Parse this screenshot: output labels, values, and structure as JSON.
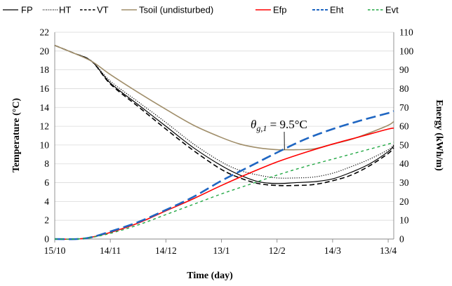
{
  "chart_data": {
    "type": "line",
    "xlabel": "Time (day)",
    "ylabel_left": "Temperature (°C)",
    "ylabel_right": "Energy (kWh/m)",
    "x_ticks": [
      {
        "label": "15/10",
        "day": 0
      },
      {
        "label": "14/11",
        "day": 30
      },
      {
        "label": "14/12",
        "day": 60
      },
      {
        "label": "13/1",
        "day": 90
      },
      {
        "label": "12/2",
        "day": 120
      },
      {
        "label": "14/3",
        "day": 150
      },
      {
        "label": "13/4",
        "day": 180
      }
    ],
    "xlim": [
      0,
      183
    ],
    "ylim_left": [
      0,
      22
    ],
    "ylim_right": [
      0,
      110
    ],
    "y_ticks_left": [
      "0",
      "2",
      "4",
      "6",
      "8",
      "10",
      "12",
      "14",
      "16",
      "18",
      "20",
      "22"
    ],
    "y_ticks_right": [
      "0",
      "10",
      "20",
      "30",
      "40",
      "50",
      "60",
      "70",
      "80",
      "90",
      "100",
      "110"
    ],
    "grid": "horizontal",
    "legend_position": "top",
    "annotation": {
      "text_parts": [
        "θ",
        "g,1",
        " = 9.5°C"
      ],
      "x": 124,
      "y": 9.5
    },
    "series": [
      {
        "name": "FP",
        "axis": "left",
        "color": "#000000",
        "dash": "solid",
        "width": 1.2,
        "x": [
          0,
          10,
          20,
          30,
          45,
          60,
          75,
          90,
          100,
          110,
          120,
          130,
          140,
          150,
          160,
          170,
          180,
          183
        ],
        "y": [
          20.6,
          19.8,
          18.9,
          16.6,
          14.3,
          12.0,
          9.7,
          7.8,
          6.8,
          6.1,
          5.9,
          6.0,
          6.1,
          6.4,
          7.1,
          8.0,
          9.3,
          9.9
        ]
      },
      {
        "name": "HT",
        "axis": "left",
        "color": "#000000",
        "dash": "dotted",
        "width": 1.2,
        "x": [
          0,
          10,
          20,
          30,
          45,
          60,
          75,
          90,
          100,
          110,
          120,
          130,
          140,
          150,
          160,
          170,
          180,
          183
        ],
        "y": [
          20.6,
          19.8,
          18.9,
          16.8,
          14.6,
          12.4,
          10.1,
          8.2,
          7.3,
          6.8,
          6.5,
          6.5,
          6.6,
          7.0,
          7.7,
          8.5,
          9.5,
          10.0
        ]
      },
      {
        "name": "VT",
        "axis": "left",
        "color": "#000000",
        "dash": "dashed",
        "width": 1.6,
        "x": [
          0,
          10,
          20,
          30,
          45,
          60,
          75,
          90,
          100,
          110,
          120,
          130,
          140,
          150,
          160,
          170,
          180,
          183
        ],
        "y": [
          20.6,
          19.8,
          18.9,
          16.5,
          14.1,
          11.7,
          9.4,
          7.4,
          6.5,
          5.9,
          5.7,
          5.7,
          5.8,
          6.2,
          6.8,
          7.8,
          9.1,
          9.7
        ]
      },
      {
        "name": "Tsoil (undisturbed)",
        "axis": "left",
        "color": "#a08e6a",
        "dash": "solid",
        "width": 1.6,
        "x": [
          0,
          10,
          20,
          30,
          45,
          60,
          75,
          90,
          100,
          110,
          120,
          125,
          130,
          140,
          150,
          160,
          170,
          180,
          183
        ],
        "y": [
          20.6,
          19.8,
          18.9,
          17.5,
          15.6,
          13.8,
          12.1,
          10.8,
          10.1,
          9.7,
          9.5,
          9.5,
          9.5,
          9.6,
          10.1,
          10.6,
          11.3,
          12.1,
          12.5
        ]
      },
      {
        "name": "Efp",
        "axis": "right",
        "color": "#ff0000",
        "dash": "solid",
        "width": 1.6,
        "x": [
          0,
          12,
          20,
          30,
          45,
          60,
          75,
          90,
          105,
          120,
          135,
          150,
          165,
          180,
          183
        ],
        "y": [
          0,
          0,
          1.0,
          3.5,
          8.5,
          15,
          21.5,
          28.5,
          35,
          41,
          46,
          50.5,
          54.5,
          58.5,
          59
        ]
      },
      {
        "name": "Eht",
        "axis": "right",
        "color": "#1f66c2",
        "dash": "longdash",
        "width": 2.6,
        "x": [
          0,
          12,
          20,
          30,
          45,
          60,
          75,
          90,
          105,
          120,
          135,
          150,
          165,
          180,
          183
        ],
        "y": [
          0,
          0,
          1.0,
          4.0,
          9.0,
          15.5,
          22.5,
          31,
          38.5,
          46,
          53,
          58.5,
          63,
          67,
          68
        ]
      },
      {
        "name": "Evt",
        "axis": "right",
        "color": "#22a844",
        "dash": "shortdash",
        "width": 1.4,
        "x": [
          0,
          12,
          20,
          30,
          45,
          60,
          75,
          90,
          105,
          120,
          135,
          150,
          165,
          180,
          183
        ],
        "y": [
          0,
          0,
          0.9,
          3.0,
          7.5,
          13,
          18.5,
          24,
          29,
          34,
          38.5,
          42.5,
          46.5,
          50.5,
          51.5
        ]
      }
    ]
  }
}
